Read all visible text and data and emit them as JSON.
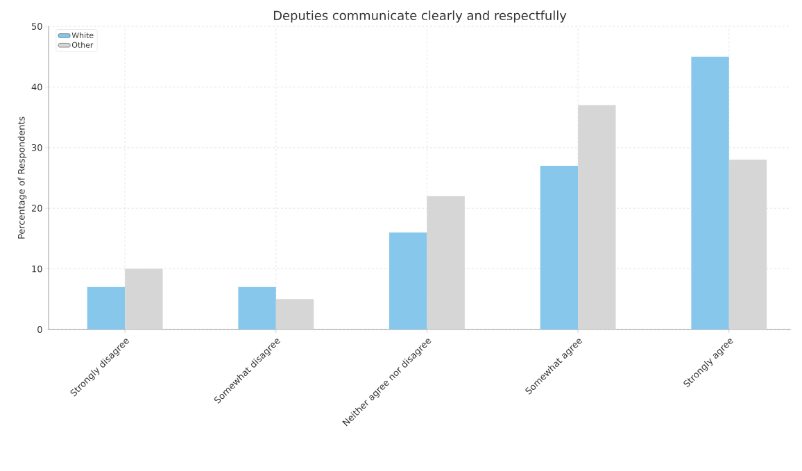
{
  "chart_data": {
    "type": "bar",
    "title": "Deputies communicate clearly and respectfully",
    "ylabel": "Percentage of Respondents",
    "categories": [
      "Strongly disagree",
      "Somewhat disagree",
      "Neither agree nor disagree",
      "Somewhat agree",
      "Strongly agree"
    ],
    "series": [
      {
        "name": "White",
        "color": "#87c7eb",
        "values": [
          7,
          7,
          16,
          27,
          45
        ]
      },
      {
        "name": "Other",
        "color": "#d6d6d6",
        "values": [
          10,
          5,
          22,
          37,
          28
        ]
      }
    ],
    "ylim": [
      0,
      50
    ],
    "yticks": [
      0,
      10,
      20,
      30,
      40,
      50
    ],
    "grid": true,
    "legend": "top left"
  }
}
